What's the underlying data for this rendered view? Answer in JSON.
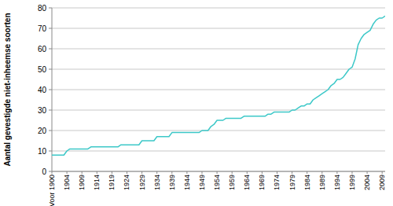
{
  "chart_data": {
    "type": "line",
    "y_label": "Aantal gevestigde niet-inheemse soorten",
    "categories": [
      "Voor 1900",
      null,
      null,
      null,
      null,
      "1904",
      null,
      null,
      null,
      null,
      "1909",
      null,
      null,
      null,
      null,
      "1914",
      null,
      null,
      null,
      null,
      "1919",
      null,
      null,
      null,
      null,
      "1924",
      null,
      null,
      null,
      null,
      "1929",
      null,
      null,
      null,
      null,
      "1934",
      null,
      null,
      null,
      null,
      "1939",
      null,
      null,
      null,
      null,
      "1944",
      null,
      null,
      null,
      null,
      "1949",
      null,
      null,
      null,
      null,
      "1954",
      null,
      null,
      null,
      null,
      "1959",
      null,
      null,
      null,
      null,
      "1964",
      null,
      null,
      null,
      null,
      "1969",
      null,
      null,
      null,
      null,
      "1974",
      null,
      null,
      null,
      null,
      "1979",
      null,
      null,
      null,
      null,
      "1984",
      null,
      null,
      null,
      null,
      "1989",
      null,
      null,
      null,
      null,
      "1994",
      null,
      null,
      null,
      null,
      "1999",
      null,
      null,
      null,
      null,
      "2004",
      null,
      null,
      null,
      null,
      "2009",
      null
    ],
    "values": [
      8,
      8,
      8,
      8,
      8,
      10,
      11,
      11,
      11,
      11,
      11,
      11,
      11,
      12,
      12,
      12,
      12,
      12,
      12,
      12,
      12,
      12,
      12,
      13,
      13,
      13,
      13,
      13,
      13,
      13,
      15,
      15,
      15,
      15,
      15,
      17,
      17,
      17,
      17,
      17,
      19,
      19,
      19,
      19,
      19,
      19,
      19,
      19,
      19,
      19,
      20,
      20,
      20,
      22,
      23,
      25,
      25,
      25,
      26,
      26,
      26,
      26,
      26,
      26,
      27,
      27,
      27,
      27,
      27,
      27,
      27,
      27,
      28,
      28,
      29,
      29,
      29,
      29,
      29,
      29,
      30,
      30,
      31,
      32,
      32,
      33,
      33,
      35,
      36,
      37,
      38,
      39,
      40,
      42,
      43,
      45,
      45,
      46,
      48,
      50,
      51,
      55,
      62,
      65,
      67,
      68,
      69,
      72,
      74,
      75,
      75,
      76
    ],
    "color": "#3cc8c8",
    "ylim": [
      0,
      80
    ],
    "yticks": [
      0,
      10,
      20,
      30,
      40,
      50,
      60,
      70,
      80
    ],
    "grid": true
  }
}
